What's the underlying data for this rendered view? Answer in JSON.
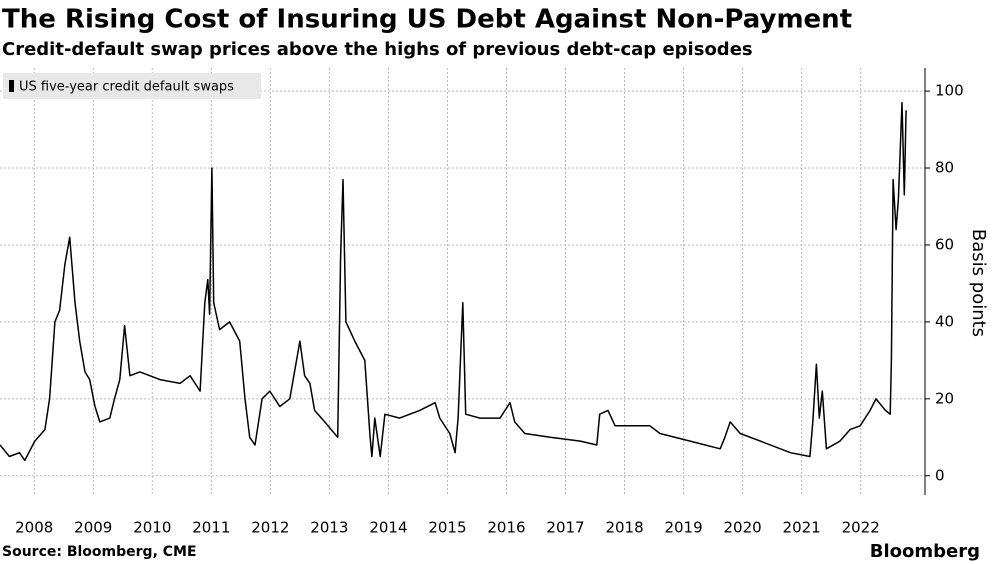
{
  "chart_data": {
    "type": "line",
    "title": "The Rising Cost of Insuring US Debt Against Non-Payment",
    "subtitle": "Credit-default swap prices above the highs of previous debt-cap episodes",
    "y_label": "Basis points",
    "source": "Source: Bloomberg, CME",
    "brand": "Bloomberg",
    "x": [
      2007.92,
      2008.08,
      2008.25,
      2008.34,
      2008.51,
      2008.68,
      2008.76,
      2008.85,
      2008.93,
      2009.02,
      2009.1,
      2009.19,
      2009.27,
      2009.36,
      2009.44,
      2009.53,
      2009.61,
      2009.78,
      2009.86,
      2009.95,
      2010.03,
      2010.12,
      2010.29,
      2010.63,
      2010.97,
      2011.14,
      2011.31,
      2011.39,
      2011.44,
      2011.47,
      2011.51,
      2011.54,
      2011.64,
      2011.81,
      2011.98,
      2012.07,
      2012.15,
      2012.24,
      2012.36,
      2012.49,
      2012.66,
      2012.83,
      2013.0,
      2013.08,
      2013.17,
      2013.25,
      2013.42,
      2013.64,
      2013.69,
      2013.73,
      2013.78,
      2013.93,
      2014.1,
      2014.19,
      2014.22,
      2014.27,
      2014.36,
      2014.44,
      2014.69,
      2015.03,
      2015.29,
      2015.37,
      2015.54,
      2015.63,
      2015.68,
      2015.76,
      2015.81,
      2016.05,
      2016.39,
      2016.56,
      2016.64,
      2016.81,
      2017.24,
      2017.75,
      2018.03,
      2018.08,
      2018.22,
      2018.34,
      2018.93,
      2019.1,
      2019.61,
      2020.12,
      2020.2,
      2020.29,
      2020.46,
      2020.8,
      2021.31,
      2021.64,
      2021.69,
      2021.75,
      2021.8,
      2021.85,
      2021.92,
      2022.15,
      2022.32,
      2022.49,
      2022.66,
      2022.76,
      2022.92,
      2023.0,
      2023.02,
      2023.05,
      2023.1,
      2023.14,
      2023.2,
      2023.24,
      2023.27
    ],
    "series": [
      {
        "name": "US five-year credit default swaps",
        "color": "#000000",
        "values": [
          8,
          5,
          6,
          4,
          9,
          12,
          20,
          40,
          43,
          55,
          62,
          45,
          35,
          27,
          25,
          18,
          14,
          15,
          20,
          25,
          39,
          26,
          27,
          25,
          24,
          26,
          22,
          45,
          51,
          42,
          80,
          45,
          38,
          40,
          35,
          20,
          10,
          8,
          20,
          22,
          18,
          20,
          35,
          26,
          24,
          17,
          14,
          10,
          57,
          77,
          40,
          35,
          30,
          10,
          5,
          15,
          5,
          16,
          15,
          17,
          19,
          15,
          11,
          6,
          15,
          45,
          16,
          15,
          15,
          19,
          14,
          11,
          10,
          9,
          8,
          16,
          17,
          13,
          13,
          11,
          9,
          7,
          10,
          14,
          11,
          9,
          6,
          5,
          14,
          29,
          15,
          22,
          7,
          9,
          12,
          13,
          17,
          20,
          17,
          16,
          30,
          77,
          64,
          72,
          97,
          73,
          95
        ]
      }
    ],
    "xlim": [
      2007.92,
      2023.59
    ],
    "xticks": [
      {
        "value": 2008.5,
        "label": "2008"
      },
      {
        "value": 2009.5,
        "label": "2009"
      },
      {
        "value": 2010.5,
        "label": "2010"
      },
      {
        "value": 2011.5,
        "label": "2011"
      },
      {
        "value": 2012.5,
        "label": "2012"
      },
      {
        "value": 2013.5,
        "label": "2013"
      },
      {
        "value": 2014.5,
        "label": "2014"
      },
      {
        "value": 2015.5,
        "label": "2015"
      },
      {
        "value": 2016.5,
        "label": "2016"
      },
      {
        "value": 2017.5,
        "label": "2017"
      },
      {
        "value": 2018.5,
        "label": "2018"
      },
      {
        "value": 2019.5,
        "label": "2019"
      },
      {
        "value": 2020.5,
        "label": "2020"
      },
      {
        "value": 2021.5,
        "label": "2021"
      },
      {
        "value": 2022.5,
        "label": "2022"
      }
    ],
    "ylim": [
      -5,
      106
    ],
    "yticks": [
      0,
      20,
      40,
      60,
      80,
      100
    ],
    "grid": true,
    "legend": "top-left"
  }
}
